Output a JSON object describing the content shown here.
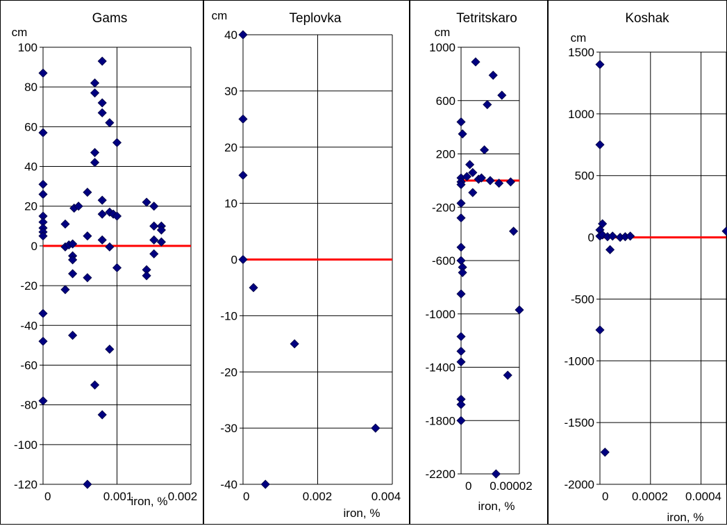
{
  "colors": {
    "marker": "#000080",
    "zero_line": "#ff0000",
    "grid": "#000000",
    "background": "#ffffff"
  },
  "chart_data": [
    {
      "type": "scatter",
      "title": "Gams",
      "ylabel": "cm",
      "xlabel": "iron, %",
      "xlim": [
        0,
        0.002
      ],
      "ylim": [
        -120,
        100
      ],
      "xticks": [
        "0",
        "0.001",
        "0.002"
      ],
      "yticks": [
        "100",
        "80",
        "60",
        "40",
        "20",
        "0",
        "-20",
        "-40",
        "-60",
        "-80",
        "-100",
        "-120"
      ],
      "grid": true,
      "legend": "none",
      "zero_line": true,
      "points": [
        [
          0,
          87
        ],
        [
          0,
          57
        ],
        [
          0,
          31
        ],
        [
          0,
          26
        ],
        [
          0,
          15
        ],
        [
          0,
          12
        ],
        [
          0,
          9
        ],
        [
          0,
          7
        ],
        [
          0,
          5
        ],
        [
          0,
          -34
        ],
        [
          0,
          -48
        ],
        [
          0,
          -78
        ],
        [
          0.0003,
          11
        ],
        [
          0.0003,
          -0.5
        ],
        [
          0.0003,
          -22
        ],
        [
          0.00035,
          0.5
        ],
        [
          0.0004,
          1
        ],
        [
          0.0004,
          -5
        ],
        [
          0.0004,
          -7
        ],
        [
          0.0004,
          -14
        ],
        [
          0.0004,
          -45
        ],
        [
          0.00042,
          19
        ],
        [
          0.00048,
          20
        ],
        [
          0.0006,
          27
        ],
        [
          0.0006,
          5
        ],
        [
          0.0006,
          -16
        ],
        [
          0.0006,
          -120
        ],
        [
          0.0007,
          82
        ],
        [
          0.0007,
          77
        ],
        [
          0.0007,
          47
        ],
        [
          0.0007,
          42
        ],
        [
          0.0007,
          -70
        ],
        [
          0.0008,
          93
        ],
        [
          0.0008,
          72
        ],
        [
          0.0008,
          67
        ],
        [
          0.0008,
          23
        ],
        [
          0.0008,
          16
        ],
        [
          0.0008,
          3
        ],
        [
          0.0008,
          -85
        ],
        [
          0.0009,
          62
        ],
        [
          0.0009,
          17
        ],
        [
          0.0009,
          -0.5
        ],
        [
          0.0009,
          -52
        ],
        [
          0.00095,
          16
        ],
        [
          0.001,
          52
        ],
        [
          0.001,
          15
        ],
        [
          0.001,
          -11
        ],
        [
          0.0014,
          22
        ],
        [
          0.0014,
          -12
        ],
        [
          0.0014,
          -15
        ],
        [
          0.0015,
          20
        ],
        [
          0.0015,
          10
        ],
        [
          0.0015,
          3
        ],
        [
          0.0015,
          -4
        ],
        [
          0.0016,
          10
        ],
        [
          0.0016,
          8
        ],
        [
          0.0016,
          2
        ]
      ]
    },
    {
      "type": "scatter",
      "title": "Teplovka",
      "ylabel": "cm",
      "xlabel": "iron, %",
      "xlim": [
        0,
        0.004
      ],
      "ylim": [
        -40,
        40
      ],
      "xticks": [
        "0",
        "0.002",
        "0.004"
      ],
      "yticks": [
        "40",
        "30",
        "20",
        "10",
        "0",
        "-10",
        "-20",
        "-30",
        "-40"
      ],
      "grid": true,
      "legend": "none",
      "zero_line": true,
      "points": [
        [
          0,
          40
        ],
        [
          0,
          25
        ],
        [
          0,
          15
        ],
        [
          0,
          0
        ],
        [
          0.00028,
          -5
        ],
        [
          0.0006,
          -40
        ],
        [
          0.00138,
          -15
        ],
        [
          0.00355,
          -30
        ]
      ]
    },
    {
      "type": "scatter",
      "title": "Tetritskaro",
      "ylabel": "cm",
      "xlabel": "iron, %",
      "xlim": [
        0,
        2e-05
      ],
      "ylim": [
        -2200,
        1000
      ],
      "xticks": [
        "0",
        "0.00002"
      ],
      "yticks": [
        "1000",
        "600",
        "200",
        "-200",
        "-600",
        "-1000",
        "-1400",
        "-1800",
        "-2200"
      ],
      "grid": true,
      "legend": "none",
      "zero_line": true,
      "points": [
        [
          0,
          440
        ],
        [
          0,
          20
        ],
        [
          0,
          -10
        ],
        [
          0,
          -30
        ],
        [
          0,
          -170
        ],
        [
          0,
          -280
        ],
        [
          0,
          -500
        ],
        [
          0,
          -600
        ],
        [
          0,
          -850
        ],
        [
          0,
          -1170
        ],
        [
          0,
          -1280
        ],
        [
          0,
          -1360
        ],
        [
          0,
          -1640
        ],
        [
          0,
          -1680
        ],
        [
          0,
          -1800
        ],
        [
          5e-07,
          350
        ],
        [
          5e-07,
          -650
        ],
        [
          5e-07,
          -690
        ],
        [
          2e-06,
          30
        ],
        [
          3e-06,
          120
        ],
        [
          4e-06,
          60
        ],
        [
          4e-06,
          -90
        ],
        [
          5e-06,
          890
        ],
        [
          6e-06,
          10
        ],
        [
          7e-06,
          20
        ],
        [
          8e-06,
          230
        ],
        [
          9e-06,
          570
        ],
        [
          1e-05,
          0
        ],
        [
          1.1e-05,
          790
        ],
        [
          1.2e-05,
          -2200
        ],
        [
          1.3e-05,
          -20
        ],
        [
          1.4e-05,
          640
        ],
        [
          1.6e-05,
          -1460
        ],
        [
          1.7e-05,
          -10
        ],
        [
          1.8e-05,
          -380
        ],
        [
          2e-05,
          -970
        ]
      ]
    },
    {
      "type": "scatter",
      "title": "Koshak",
      "ylabel": "cm",
      "xlabel": "iron, %",
      "xlim": [
        0,
        0.0005
      ],
      "ylim": [
        -2000,
        1500
      ],
      "xticks": [
        "0",
        "0.0002",
        "0.0004"
      ],
      "yticks": [
        "1500",
        "1000",
        "500",
        "0",
        "-500",
        "-1000",
        "-1500",
        "-2000"
      ],
      "grid": true,
      "legend": "none",
      "zero_line": true,
      "points": [
        [
          0,
          1400
        ],
        [
          0,
          750
        ],
        [
          0,
          60
        ],
        [
          0,
          10
        ],
        [
          0,
          -750
        ],
        [
          1e-05,
          110
        ],
        [
          1e-05,
          20
        ],
        [
          2e-05,
          -1740
        ],
        [
          3e-05,
          5
        ],
        [
          4e-05,
          -100
        ],
        [
          5e-05,
          10
        ],
        [
          8e-05,
          0
        ],
        [
          0.0001,
          5
        ],
        [
          0.00012,
          10
        ],
        [
          0.0005,
          50
        ]
      ]
    }
  ]
}
